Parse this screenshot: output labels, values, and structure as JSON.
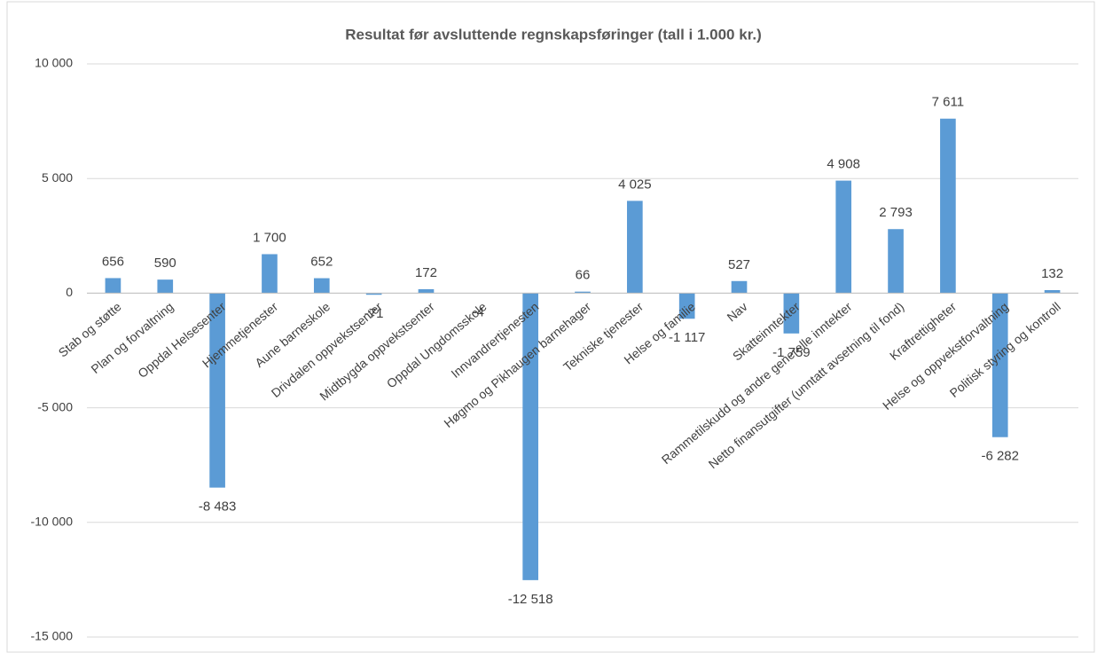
{
  "chart_data": {
    "type": "bar",
    "title": "Resultat før avsluttende regnskapsføringer (tall i 1.000 kr.)",
    "categories": [
      "Stab og støtte",
      "Plan og forvaltning",
      "Oppdal Helsesenter",
      "Hjemmetjenester",
      "Aune barneskole",
      "Drivdalen oppvekstsenter",
      "Midtbygda oppvekstsenter",
      "Oppdal Ungdomsskole",
      "Innvandrertjenesten",
      "Høgmo og Pikhaugen barnehager",
      "Tekniske tjenester",
      "Helse og familie",
      "Nav",
      "Skatteinntekter",
      "Rammetilskudd  og andre generelle inntekter",
      "Netto finansutgifter (unntatt avsetning til fond)",
      "Kraftrettigheter",
      "Helse og oppvekstforvaltning",
      "Politisk styring og kontroll"
    ],
    "values": [
      656,
      590,
      -8483,
      1700,
      652,
      -71,
      172,
      -4,
      -12518,
      66,
      4025,
      -1117,
      527,
      -1759,
      4908,
      2793,
      7611,
      -6282,
      132
    ],
    "value_labels": [
      "656",
      "590",
      "-8 483",
      "1 700",
      "652",
      "-71",
      "172",
      "-4",
      "-12 518",
      "66",
      "4 025",
      "-1 117",
      "527",
      "-1 759",
      "4 908",
      "2 793",
      "7 611",
      "-6 282",
      "132"
    ],
    "color": "#5b9bd5",
    "ylim": [
      -15000,
      10000
    ],
    "yticks": [
      {
        "value": -15000,
        "label": "-15 000"
      },
      {
        "value": -10000,
        "label": "-10 000"
      },
      {
        "value": -5000,
        "label": "-5 000"
      },
      0,
      {
        "value": 5000,
        "label": "5 000"
      },
      {
        "value": 10000,
        "label": "10 000"
      }
    ],
    "grid": true
  }
}
